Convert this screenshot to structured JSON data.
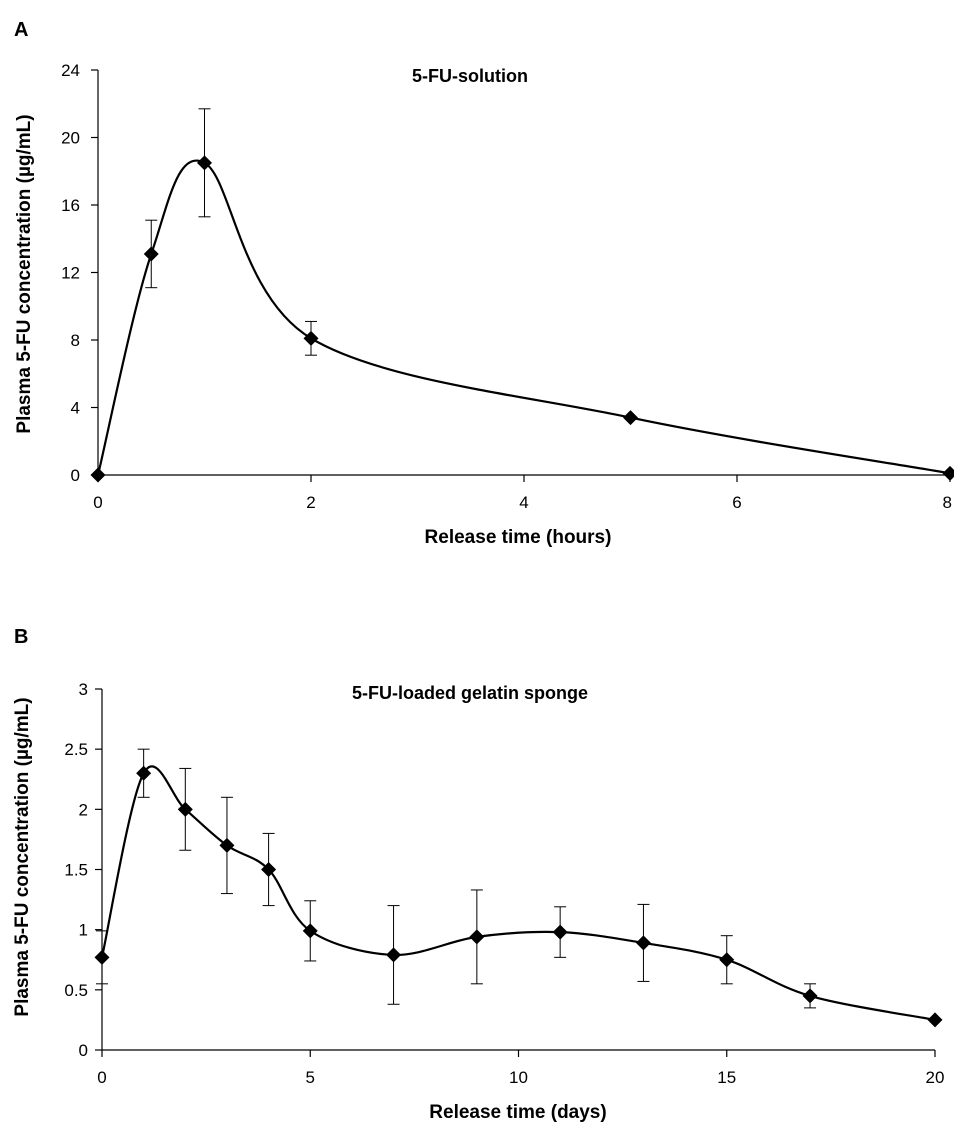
{
  "chart_data": [
    {
      "type": "line",
      "panel_label": "A",
      "title": "5-FU-solution",
      "xlabel": "Release time (hours)",
      "ylabel": "Plasma 5-FU concentration (µg/mL)",
      "xlim": [
        0,
        8
      ],
      "ylim": [
        0,
        24
      ],
      "x_ticks": [
        0,
        2,
        4,
        6,
        8
      ],
      "y_ticks": [
        0,
        4,
        8,
        12,
        16,
        20,
        24
      ],
      "grid": false,
      "marker": "diamond",
      "color": "#000000",
      "x": [
        0,
        0.5,
        1,
        2,
        5,
        8
      ],
      "y": [
        0,
        13.1,
        18.5,
        8.1,
        3.4,
        0.1
      ],
      "error": [
        0,
        2.0,
        3.2,
        1.0,
        0,
        0
      ]
    },
    {
      "type": "line",
      "panel_label": "B",
      "title": "5-FU-loaded gelatin sponge",
      "xlabel": "Release time (days)",
      "ylabel": "Plasma 5-FU concentration (µg/mL)",
      "xlim": [
        0,
        20
      ],
      "ylim": [
        0,
        3
      ],
      "x_ticks": [
        0,
        5,
        10,
        15,
        20
      ],
      "y_ticks": [
        0,
        0.5,
        1,
        1.5,
        2,
        2.5,
        3
      ],
      "grid": false,
      "marker": "diamond",
      "color": "#000000",
      "x": [
        0,
        1,
        2,
        3,
        4,
        5,
        7,
        9,
        11,
        13,
        15,
        17,
        20
      ],
      "y": [
        0.77,
        2.3,
        2.0,
        1.7,
        1.5,
        0.99,
        0.79,
        0.94,
        0.98,
        0.89,
        0.75,
        0.45,
        0.25
      ],
      "error": [
        0.22,
        0.2,
        0.34,
        0.4,
        0.3,
        0.25,
        0.41,
        0.39,
        0.21,
        0.32,
        0.2,
        0.1,
        0
      ]
    }
  ]
}
